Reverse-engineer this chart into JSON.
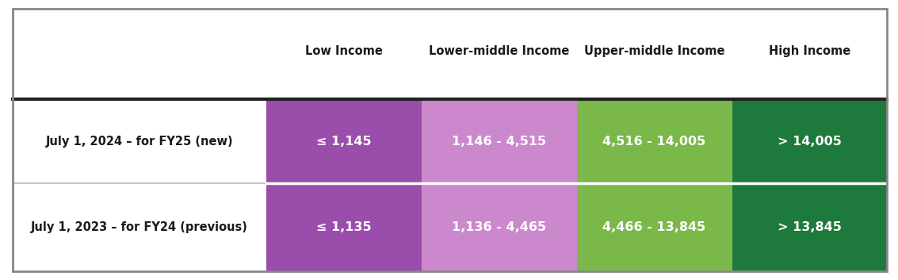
{
  "col_headers": [
    "Low Income",
    "Lower-middle Income",
    "Upper-middle Income",
    "High Income"
  ],
  "rows": [
    {
      "label": "July 1, 2024 – for FY25 (new)",
      "values": [
        "≤ 1,145",
        "1,146 - 4,515",
        "4,516 - 14,005",
        "> 14,005"
      ]
    },
    {
      "label": "July 1, 2023 – for FY24 (previous)",
      "values": [
        "≤ 1,135",
        "1,136 - 4,465",
        "4,466 - 13,845",
        "> 13,845"
      ]
    }
  ],
  "col_colors": [
    "#9B4DAB",
    "#CC88CC",
    "#7BB84A",
    "#1E7A3C"
  ],
  "header_text_color": "#1a1a1a",
  "cell_text_color": "#ffffff",
  "row_label_color": "#1a1a1a",
  "background_color": "#ffffff",
  "outer_border_color": "#888888",
  "thick_line_color": "#222222",
  "divider_color": "#bbbbbb"
}
